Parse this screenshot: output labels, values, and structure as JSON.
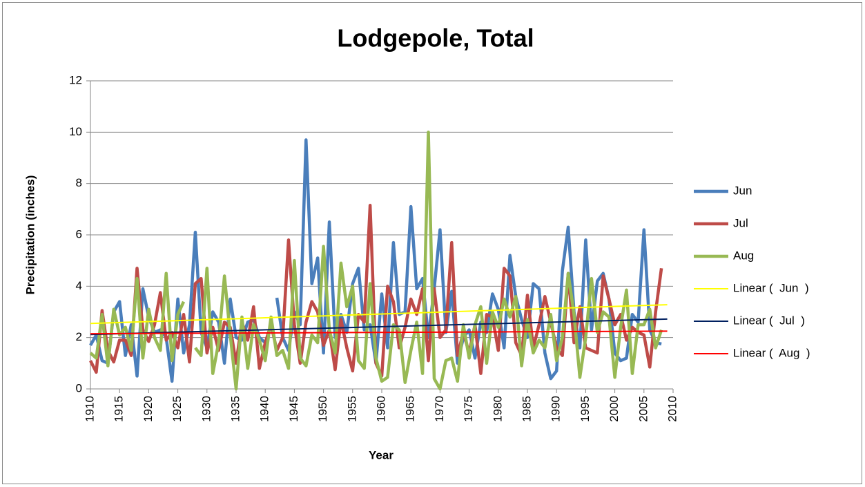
{
  "chart_data": {
    "type": "line",
    "title": "Lodgepole, Total",
    "xlabel": "Year",
    "ylabel": "Precipitation (inches)",
    "x": [
      1910,
      1911,
      1912,
      1913,
      1914,
      1915,
      1916,
      1917,
      1918,
      1919,
      1920,
      1921,
      1922,
      1923,
      1924,
      1925,
      1926,
      1927,
      1928,
      1929,
      1930,
      1931,
      1932,
      1933,
      1934,
      1935,
      1936,
      1937,
      1938,
      1939,
      1940,
      1941,
      1942,
      1943,
      1944,
      1945,
      1946,
      1947,
      1948,
      1949,
      1950,
      1951,
      1952,
      1953,
      1954,
      1955,
      1956,
      1957,
      1958,
      1959,
      1960,
      1961,
      1962,
      1963,
      1964,
      1965,
      1966,
      1967,
      1968,
      1969,
      1970,
      1971,
      1972,
      1973,
      1974,
      1975,
      1976,
      1977,
      1978,
      1979,
      1980,
      1981,
      1982,
      1983,
      1984,
      1985,
      1986,
      1987,
      1988,
      1989,
      1990,
      1991,
      1992,
      1993,
      1994,
      1995,
      1996,
      1997,
      1998,
      1999,
      2000,
      2001,
      2002,
      2003,
      2004,
      2005,
      2006,
      2007,
      2008
    ],
    "series": [
      {
        "name": "Jun",
        "color": "#4a7ebb",
        "values": [
          1.7,
          2.1,
          1.1,
          1.0,
          3.0,
          3.4,
          1.3,
          2.5,
          0.5,
          3.9,
          2.8,
          2.2,
          2.3,
          2.0,
          0.3,
          3.5,
          1.4,
          2.5,
          6.1,
          2.2,
          1.6,
          3.0,
          2.6,
          1.0,
          3.5,
          2.0,
          1.9,
          2.6,
          2.7,
          2.0,
          1.8,
          null,
          3.55,
          2.0,
          1.5,
          3.0,
          2.5,
          9.7,
          4.1,
          5.1,
          1.4,
          6.5,
          2.0,
          2.9,
          2.2,
          4.1,
          4.7,
          2.3,
          2.5,
          1.0,
          3.7,
          1.6,
          5.7,
          2.9,
          3.0,
          7.1,
          3.9,
          4.3,
          2.0,
          3.9,
          6.2,
          2.2,
          3.8,
          1.0,
          2.0,
          2.3,
          1.2,
          2.6,
          2.2,
          3.7,
          3.1,
          1.6,
          5.2,
          3.6,
          2.7,
          2.0,
          4.1,
          3.9,
          1.4,
          0.4,
          0.7,
          4.6,
          6.3,
          3.0,
          1.6,
          5.8,
          2.3,
          4.2,
          4.5,
          3.5,
          1.4,
          1.1,
          1.2,
          2.9,
          2.6,
          6.2,
          2.3,
          1.8,
          1.75
        ]
      },
      {
        "name": "Jul",
        "color": "#be4b48",
        "values": [
          1.1,
          0.65,
          3.05,
          1.5,
          1.05,
          1.9,
          1.9,
          1.3,
          4.7,
          2.3,
          1.85,
          2.5,
          3.75,
          1.9,
          2.2,
          1.6,
          2.9,
          1.05,
          4.1,
          4.3,
          1.4,
          2.4,
          1.5,
          2.6,
          2.4,
          1.0,
          2.6,
          1.9,
          3.2,
          0.8,
          1.8,
          2.5,
          1.5,
          2.0,
          5.8,
          2.5,
          1.0,
          2.6,
          3.4,
          3.0,
          1.7,
          2.3,
          0.75,
          2.7,
          1.6,
          0.7,
          2.9,
          2.6,
          7.15,
          1.0,
          0.5,
          4.0,
          3.4,
          1.6,
          2.4,
          3.5,
          2.9,
          3.9,
          1.1,
          3.9,
          2.0,
          2.3,
          5.7,
          1.3,
          2.2,
          1.4,
          2.5,
          0.6,
          2.9,
          2.8,
          1.5,
          4.7,
          4.4,
          1.8,
          1.3,
          3.65,
          1.6,
          2.5,
          3.6,
          2.6,
          1.6,
          1.3,
          4.5,
          1.8,
          3.2,
          1.6,
          1.5,
          1.4,
          4.4,
          3.5,
          2.5,
          2.9,
          1.9,
          2.4,
          2.2,
          2.1,
          0.85,
          3.0,
          4.7
        ]
      },
      {
        "name": "Aug",
        "color": "#98b954",
        "values": [
          1.4,
          1.2,
          2.9,
          0.9,
          3.1,
          2.1,
          2.4,
          1.5,
          4.3,
          1.2,
          3.1,
          2.0,
          1.5,
          4.5,
          1.1,
          2.9,
          3.4,
          null,
          1.6,
          1.3,
          4.7,
          0.6,
          1.8,
          4.4,
          2.1,
          0.0,
          2.8,
          0.8,
          2.5,
          1.9,
          1.1,
          2.8,
          1.3,
          1.5,
          0.8,
          5.0,
          1.2,
          0.9,
          2.1,
          1.8,
          5.55,
          2.3,
          1.4,
          4.9,
          3.2,
          4.0,
          1.1,
          0.8,
          4.1,
          1.2,
          0.3,
          0.45,
          2.5,
          2.3,
          0.25,
          1.5,
          2.6,
          0.6,
          10.0,
          0.4,
          0.0,
          1.1,
          1.2,
          0.3,
          2.5,
          1.2,
          2.5,
          3.2,
          1.0,
          3.0,
          2.4,
          3.5,
          2.8,
          3.6,
          0.9,
          2.7,
          1.4,
          1.9,
          1.6,
          2.9,
          1.1,
          2.0,
          4.5,
          2.9,
          0.45,
          2.0,
          4.3,
          2.2,
          3.0,
          2.8,
          0.45,
          2.4,
          3.85,
          0.6,
          2.5,
          2.5,
          3.1,
          1.6,
          2.3
        ]
      }
    ],
    "trendlines": [
      {
        "name": "Linear (  Jun  )",
        "color": "#ffff00",
        "x": [
          1910,
          2009
        ],
        "values": [
          2.55,
          3.28
        ]
      },
      {
        "name": "Linear (  Jul  )",
        "color": "#002060",
        "x": [
          1910,
          2009
        ],
        "values": [
          2.12,
          2.72
        ]
      },
      {
        "name": "Linear (  Aug  )",
        "color": "#ff0000",
        "x": [
          1910,
          2009
        ],
        "values": [
          2.15,
          2.25
        ]
      }
    ],
    "xlim": [
      1910,
      2010
    ],
    "xticks": [
      1910,
      1915,
      1920,
      1925,
      1930,
      1935,
      1940,
      1945,
      1950,
      1955,
      1960,
      1965,
      1970,
      1975,
      1980,
      1985,
      1990,
      1995,
      2000,
      2005,
      2010
    ],
    "ylim": [
      0,
      12
    ],
    "yticks": [
      0,
      2,
      4,
      6,
      8,
      10,
      12
    ],
    "grid": true,
    "legend": "right"
  }
}
